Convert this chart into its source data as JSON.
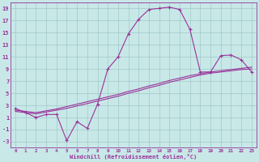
{
  "background_color": "#c8e8e8",
  "grid_color": "#a0c8c8",
  "line_color": "#993399",
  "xlabel": "Windchill (Refroidissement éolien,°C)",
  "ylim": [
    -4,
    20
  ],
  "xlim": [
    -0.5,
    23.5
  ],
  "yticks": [
    -3,
    -1,
    1,
    3,
    5,
    7,
    9,
    11,
    13,
    15,
    17,
    19
  ],
  "xticks": [
    0,
    1,
    2,
    3,
    4,
    5,
    6,
    7,
    8,
    9,
    10,
    11,
    12,
    13,
    14,
    15,
    16,
    17,
    18,
    19,
    20,
    21,
    22,
    23
  ],
  "series1_x": [
    0,
    1,
    2,
    3,
    4,
    5,
    6,
    7,
    8,
    9,
    10,
    11,
    12,
    13,
    14,
    15,
    16,
    17,
    18,
    19,
    20,
    21,
    22,
    23
  ],
  "series1_y": [
    2.5,
    1.8,
    1.0,
    1.5,
    1.5,
    -2.8,
    0.3,
    -0.8,
    3.2,
    9.0,
    11.0,
    14.8,
    17.2,
    18.8,
    19.0,
    19.2,
    18.8,
    15.5,
    8.5,
    8.5,
    11.2,
    11.3,
    10.5,
    8.5
  ],
  "series2_x": [
    0,
    1,
    2,
    3,
    4,
    5,
    6,
    7,
    8,
    9,
    10,
    11,
    12,
    13,
    14,
    15,
    16,
    17,
    18,
    19,
    20,
    21,
    22,
    23
  ],
  "series2_y": [
    2.0,
    1.8,
    1.6,
    1.9,
    2.2,
    2.5,
    2.9,
    3.3,
    3.7,
    4.1,
    4.5,
    5.0,
    5.4,
    5.9,
    6.3,
    6.8,
    7.2,
    7.6,
    8.0,
    8.3,
    8.5,
    8.7,
    8.9,
    9.0
  ],
  "series3_x": [
    0,
    1,
    2,
    3,
    4,
    5,
    6,
    7,
    8,
    9,
    10,
    11,
    12,
    13,
    14,
    15,
    16,
    17,
    18,
    19,
    20,
    21,
    22,
    23
  ],
  "series3_y": [
    2.2,
    2.0,
    1.8,
    2.1,
    2.4,
    2.8,
    3.2,
    3.6,
    4.0,
    4.4,
    4.8,
    5.3,
    5.7,
    6.2,
    6.6,
    7.1,
    7.5,
    7.9,
    8.2,
    8.5,
    8.7,
    8.9,
    9.1,
    9.3
  ]
}
